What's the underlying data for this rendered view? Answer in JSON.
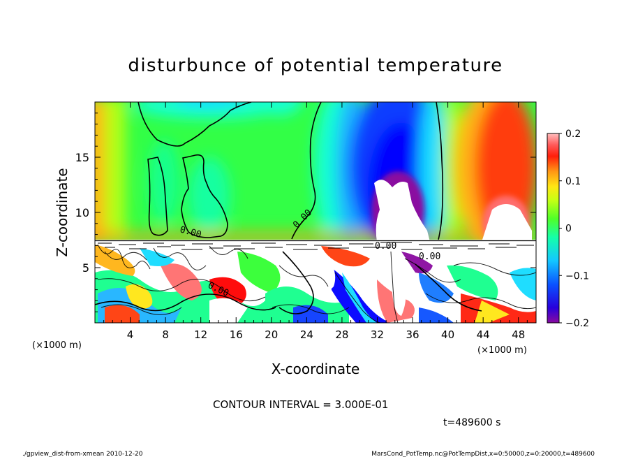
{
  "chart_data": {
    "type": "heatmap",
    "title": "disturbunce of potential temperature",
    "xlabel": "X-coordinate",
    "ylabel": "Z-coordinate",
    "x_unit_left": "(×1000 m)",
    "x_unit_right": "(×1000 m)",
    "xlim": [
      0,
      50
    ],
    "ylim": [
      0,
      20
    ],
    "xticks": [
      4,
      8,
      12,
      16,
      20,
      24,
      28,
      32,
      36,
      40,
      44,
      48
    ],
    "yticks": [
      5,
      10,
      15
    ],
    "colorbar": {
      "ticks": [
        {
          "value": 0.2,
          "label": "0.2"
        },
        {
          "value": 0.1,
          "label": "0.1"
        },
        {
          "value": 0,
          "label": "0"
        },
        {
          "value": -0.1,
          "label": "−0.1"
        },
        {
          "value": -0.2,
          "label": "−0.2"
        }
      ],
      "range": [
        -0.2,
        0.2
      ],
      "colors": [
        "#8a0aa0",
        "#3c00c8",
        "#0000ff",
        "#0a3cff",
        "#1478ff",
        "#1eb4ff",
        "#14dcff",
        "#14ffd2",
        "#14ff8c",
        "#32ff32",
        "#78ff1e",
        "#b4ff14",
        "#dcff14",
        "#ffff1e",
        "#ffdc14",
        "#ffb414",
        "#ff780a",
        "#ff3c0a",
        "#ff0000",
        "#ff6e6e",
        "#ffb4b4"
      ]
    },
    "contour_labels": [
      "0.00",
      "0.00",
      "0.00",
      "0.00",
      "0.00"
    ],
    "contour_interval_text": "CONTOUR INTERVAL = 3.000E-01",
    "time_text": "t=489600 s",
    "footer_left": "./gpview_dist-from-xmean 2010-12-20",
    "footer_right": "MarsCond_PotTemp.nc@PotTempDist,x=0:50000,z=0:20000,t=489600"
  }
}
